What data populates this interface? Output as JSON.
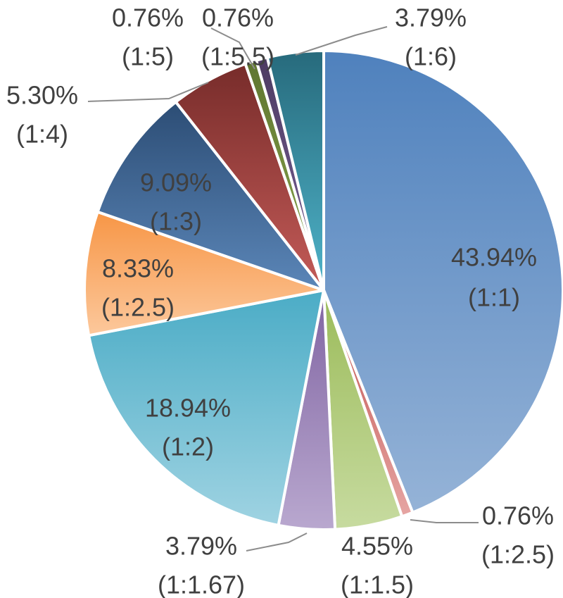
{
  "chart_data": {
    "type": "pie",
    "title": "",
    "slices": [
      {
        "value": 43.94,
        "pct_label": "43.94%",
        "ratio_label": "(1:1)",
        "color": "#4f81bd",
        "color_light": "#95b3d7"
      },
      {
        "value": 0.76,
        "pct_label": "0.76%",
        "ratio_label": "(1:2.5)",
        "color": "#c0504d",
        "color_light": "#e6a5a3"
      },
      {
        "value": 4.55,
        "pct_label": "4.55%",
        "ratio_label": "(1:1.5)",
        "color": "#9bbb59",
        "color_light": "#c7dba0"
      },
      {
        "value": 3.79,
        "pct_label": "3.79%",
        "ratio_label": "(1:1.67)",
        "color": "#8064a2",
        "color_light": "#b9a8cf"
      },
      {
        "value": 18.94,
        "pct_label": "18.94%",
        "ratio_label": "(1:2)",
        "color": "#4bacc6",
        "color_light": "#9fd3e2"
      },
      {
        "value": 8.33,
        "pct_label": "8.33%",
        "ratio_label": "(1:2.5)",
        "color": "#f79646",
        "color_light": "#fcc89c"
      },
      {
        "value": 9.09,
        "pct_label": "9.09%",
        "ratio_label": "(1:3)",
        "color": "#2c4d75",
        "color_light": "#5b86b8"
      },
      {
        "value": 5.3,
        "pct_label": "5.30%",
        "ratio_label": "(1:4)",
        "color": "#772c2a",
        "color_light": "#c45b58"
      },
      {
        "value": 0.76,
        "pct_label": "0.76%",
        "ratio_label": "(1:5)",
        "color": "#5f7530",
        "color_light": "#8aa84d"
      },
      {
        "value": 0.76,
        "pct_label": "0.76%",
        "ratio_label": "(1:5.5)",
        "color": "#4d3b62",
        "color_light": "#7a629a"
      },
      {
        "value": 3.79,
        "pct_label": "3.79%",
        "ratio_label": "(1:6)",
        "color": "#276a7c",
        "color_light": "#4fb3c9"
      }
    ]
  }
}
